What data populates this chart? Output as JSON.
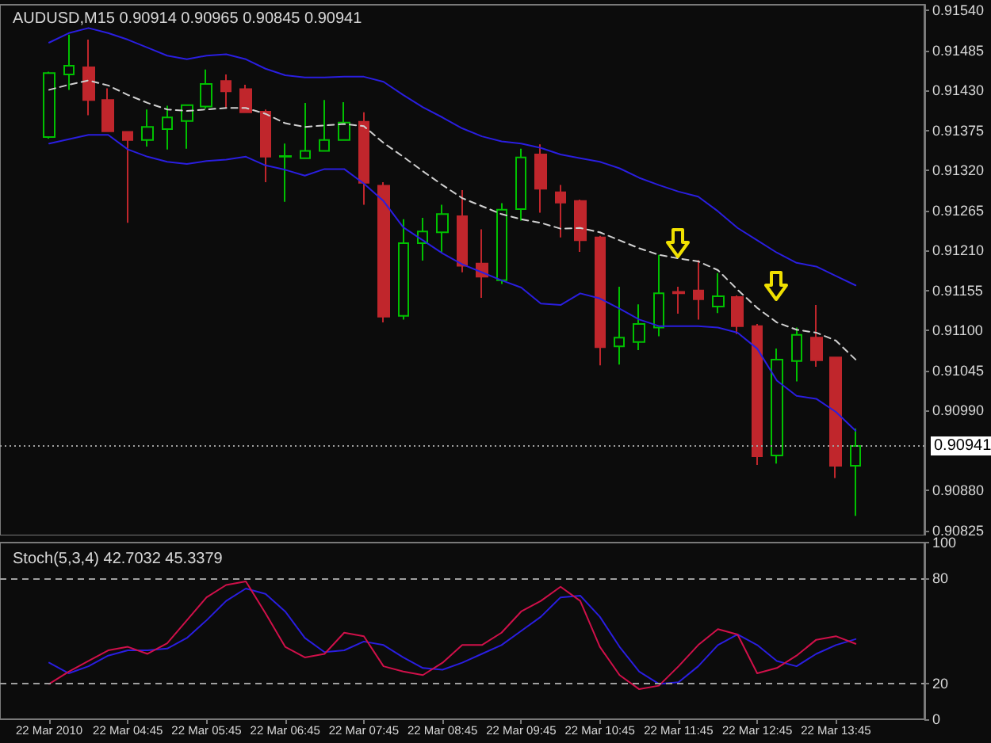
{
  "chart_data": [
    {
      "type": "candlestick",
      "title": "AUDUSD,M15 0.90914 0.90965 0.90845 0.90941",
      "categories": [
        null,
        null,
        null,
        null,
        null,
        null,
        null,
        null,
        null,
        null,
        null,
        null,
        null,
        null,
        null,
        null,
        null,
        null,
        null,
        null,
        null,
        null,
        null,
        null,
        null,
        null,
        null,
        null,
        null,
        null,
        null,
        null,
        null,
        null,
        null,
        null,
        null,
        null,
        null,
        null,
        null,
        null
      ],
      "ohlc": [
        [
          0.91366,
          0.91456,
          0.91364,
          0.91454
        ],
        [
          0.91452,
          0.91507,
          0.91431,
          0.91464
        ],
        [
          0.91462,
          0.915,
          0.91396,
          0.91417
        ],
        [
          0.91417,
          0.91433,
          0.91373,
          0.91374
        ],
        [
          0.91373,
          0.91373,
          0.91248,
          0.91362
        ],
        [
          0.91362,
          0.91404,
          0.91353,
          0.9138
        ],
        [
          0.91377,
          0.91409,
          0.91349,
          0.91393
        ],
        [
          0.91388,
          0.9141,
          0.9135,
          0.9141
        ],
        [
          0.91408,
          0.91459,
          0.91405,
          0.91439
        ],
        [
          0.91443,
          0.91452,
          0.91405,
          0.91429
        ],
        [
          0.91432,
          0.91438,
          0.914,
          0.914
        ],
        [
          0.91401,
          0.91404,
          0.91304,
          0.91339
        ],
        [
          0.91339,
          0.91357,
          0.91277,
          0.9134
        ],
        [
          0.91337,
          0.91413,
          0.91337,
          0.91347
        ],
        [
          0.91347,
          0.91417,
          0.91347,
          0.91362
        ],
        [
          0.91362,
          0.91414,
          0.91362,
          0.91386
        ],
        [
          0.91387,
          0.914,
          0.91273,
          0.91303
        ],
        [
          0.91299,
          0.91304,
          0.91111,
          0.91119
        ],
        [
          0.9112,
          0.91253,
          0.91115,
          0.9122
        ],
        [
          0.9122,
          0.91255,
          0.91196,
          0.91236
        ],
        [
          0.91235,
          0.91273,
          0.91207,
          0.9126
        ],
        [
          0.91257,
          0.91293,
          0.9118,
          0.91189
        ],
        [
          0.91192,
          0.91239,
          0.91145,
          0.91174
        ],
        [
          0.91169,
          0.91275,
          0.91164,
          0.91266
        ],
        [
          0.91267,
          0.9135,
          0.91251,
          0.91338
        ],
        [
          0.91342,
          0.91356,
          0.91262,
          0.91295
        ],
        [
          0.9129,
          0.913,
          0.91228,
          0.91276
        ],
        [
          0.91278,
          0.9128,
          0.91208,
          0.91224
        ],
        [
          0.91228,
          0.9123,
          0.91052,
          0.91077
        ],
        [
          0.91078,
          0.9116,
          0.91053,
          0.9109
        ],
        [
          0.91084,
          0.91136,
          0.91073,
          0.91109
        ],
        [
          0.91104,
          0.91204,
          0.91092,
          0.91151
        ],
        [
          0.91153,
          0.9116,
          0.91123,
          0.91151
        ],
        [
          0.91155,
          0.91197,
          0.91115,
          0.91143
        ],
        [
          0.91133,
          0.91179,
          0.91124,
          0.91147
        ],
        [
          0.91146,
          0.91148,
          0.91095,
          0.91106
        ],
        [
          0.91106,
          0.91109,
          0.90915,
          0.90927
        ],
        [
          0.90928,
          0.91075,
          0.90917,
          0.9106
        ],
        [
          0.91058,
          0.91104,
          0.9103,
          0.91094
        ],
        [
          0.9109,
          0.91135,
          0.9105,
          0.91059
        ],
        [
          0.91063,
          0.91063,
          0.90897,
          0.90914
        ],
        [
          0.90914,
          0.90965,
          0.90845,
          0.90941
        ]
      ],
      "colors": [
        "#00c000",
        "#00c000",
        "#c0262c",
        "#c0262c",
        "#c0262c",
        "#00c000",
        "#00c000",
        "#00c000",
        "#00c000",
        "#c0262c",
        "#c0262c",
        "#c0262c",
        "#00c000",
        "#00c000",
        "#00c000",
        "#00c000",
        "#c0262c",
        "#c0262c",
        "#00c000",
        "#00c000",
        "#00c000",
        "#c0262c",
        "#c0262c",
        "#00c000",
        "#00c000",
        "#c0262c",
        "#c0262c",
        "#c0262c",
        "#c0262c",
        "#00c000",
        "#00c000",
        "#00c000",
        "#c0262c",
        "#c0262c",
        "#00c000",
        "#c0262c",
        "#c0262c",
        "#00c000",
        "#00c000",
        "#c0262c",
        "#c0262c",
        "#00c000"
      ],
      "series": [
        {
          "type": "line",
          "color": "#2a1ee0",
          "values": [
            0.91496,
            0.91509,
            0.91516,
            0.91509,
            0.915,
            0.91489,
            0.91478,
            0.91473,
            0.91478,
            0.9148,
            0.91473,
            0.9146,
            0.91451,
            0.91448,
            0.91448,
            0.91449,
            0.91449,
            0.91442,
            0.91424,
            0.91407,
            0.91393,
            0.91378,
            0.91367,
            0.9136,
            0.91357,
            0.91351,
            0.91342,
            0.91337,
            0.91332,
            0.91323,
            0.9131,
            0.913,
            0.91291,
            0.91284,
            0.91264,
            0.91241,
            0.91224,
            0.91207,
            0.91193,
            0.91188,
            0.91175,
            0.91162
          ]
        },
        {
          "type": "line",
          "color": "#d0d0d0",
          "line_style": "dashed",
          "values": [
            0.91431,
            0.91438,
            0.91444,
            0.91437,
            0.91424,
            0.91413,
            0.91404,
            0.91402,
            0.91404,
            0.91406,
            0.91406,
            0.91398,
            0.91385,
            0.9138,
            0.91382,
            0.91384,
            0.91381,
            0.91358,
            0.91339,
            0.91319,
            0.913,
            0.91282,
            0.91271,
            0.9126,
            0.91253,
            0.91248,
            0.9124,
            0.91241,
            0.91235,
            0.91224,
            0.91213,
            0.91204,
            0.91199,
            0.91195,
            0.91183,
            0.91156,
            0.91131,
            0.91111,
            0.91101,
            0.91097,
            0.91086,
            0.9106
          ]
        },
        {
          "type": "line",
          "color": "#2a1ee0",
          "values": [
            0.91357,
            0.91363,
            0.91369,
            0.91369,
            0.91349,
            0.91339,
            0.91332,
            0.91329,
            0.91333,
            0.91335,
            0.91339,
            0.91327,
            0.91321,
            0.91313,
            0.91322,
            0.91322,
            0.91302,
            0.91278,
            0.91242,
            0.91224,
            0.91206,
            0.91191,
            0.9118,
            0.91169,
            0.91159,
            0.91137,
            0.91135,
            0.91151,
            0.91144,
            0.9113,
            0.91115,
            0.91106,
            0.91106,
            0.91106,
            0.91104,
            0.91097,
            0.91075,
            0.91031,
            0.9101,
            0.91006,
            0.90988,
            0.90962
          ]
        }
      ],
      "ylim": [
        0.90818,
        0.91548
      ],
      "yticks": [
        {
          "value": 0.90825,
          "label": "0.90825"
        },
        {
          "value": 0.9088,
          "label": "0.90880"
        },
        {
          "value": 0.9099,
          "label": "0.90990"
        },
        {
          "value": 0.91045,
          "label": "0.91045"
        },
        {
          "value": 0.911,
          "label": "0.91100"
        },
        {
          "value": 0.91155,
          "label": "0.91155"
        },
        {
          "value": 0.9121,
          "label": "0.91210"
        },
        {
          "value": 0.91265,
          "label": "0.91265"
        },
        {
          "value": 0.9132,
          "label": "0.91320"
        },
        {
          "value": 0.91375,
          "label": "0.91375"
        },
        {
          "value": 0.9143,
          "label": "0.91430"
        },
        {
          "value": 0.91485,
          "label": "0.91485"
        },
        {
          "value": 0.9154,
          "label": "0.91540"
        }
      ],
      "ref_lines": [
        {
          "axis": "y",
          "value": 0.90941,
          "label": "0.90941",
          "color": "#a0a0a0",
          "line_style": "dotted"
        }
      ],
      "tick_labels": "y",
      "grid": false
    },
    {
      "type": "line",
      "title": "Stoch(5,3,4) 42.7032 45.3379",
      "categories": [
        "22 Mar 2010",
        null,
        null,
        null,
        "22 Mar 04:45",
        null,
        null,
        null,
        "22 Mar 05:45",
        null,
        null,
        null,
        "22 Mar 06:45",
        null,
        null,
        null,
        "22 Mar 07:45",
        null,
        null,
        null,
        "22 Mar 08:45",
        null,
        null,
        null,
        "22 Mar 09:45",
        null,
        null,
        null,
        "22 Mar 10:45",
        null,
        null,
        null,
        "22 Mar 11:45",
        null,
        null,
        null,
        "22 Mar 12:45",
        null,
        null,
        null,
        "22 Mar 13:45",
        null
      ],
      "series": [
        {
          "color": "#2a1ee0",
          "values": [
            32,
            26,
            30,
            36,
            39,
            39,
            40,
            46,
            56,
            67,
            74,
            71,
            61,
            46,
            38,
            39,
            44,
            42,
            35,
            29,
            28,
            32,
            37,
            42,
            50,
            58,
            69,
            70,
            58,
            41,
            27,
            20,
            21,
            30,
            42,
            48,
            42,
            33,
            30,
            37,
            42,
            45.3379
          ]
        },
        {
          "color": "#d0104a",
          "values": [
            20,
            27,
            33,
            39,
            41,
            37,
            43,
            56,
            69,
            76,
            78,
            60,
            41,
            35,
            37,
            49,
            47,
            30,
            27,
            25,
            32,
            42,
            42,
            49,
            61,
            67,
            75,
            67,
            41,
            25,
            17,
            19,
            30,
            42,
            51,
            48,
            26,
            29,
            36,
            45,
            47,
            42.7032
          ]
        }
      ],
      "ylim": [
        0,
        100
      ],
      "yticks": [
        0,
        20,
        80,
        100
      ],
      "ref_lines": [
        {
          "axis": "y",
          "value": 80,
          "color": "#a0a0a0",
          "line_style": "dashed"
        },
        {
          "axis": "y",
          "value": 20,
          "color": "#a0a0a0",
          "line_style": "dashed"
        }
      ],
      "grid": false
    }
  ]
}
